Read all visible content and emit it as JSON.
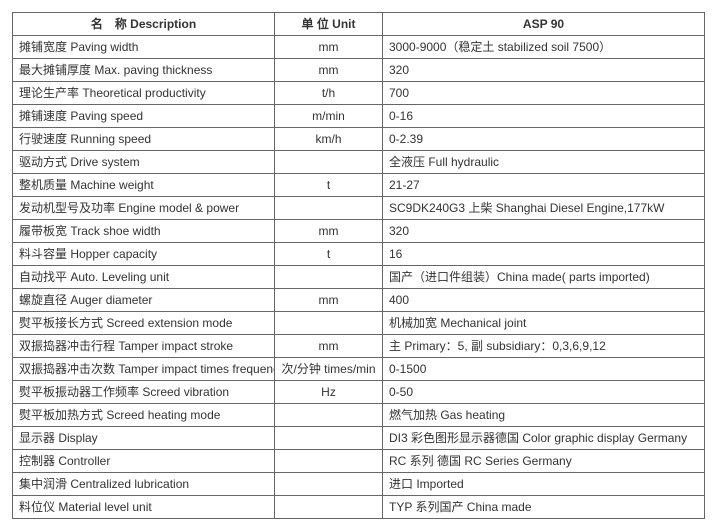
{
  "columns": [
    "名　称 Description",
    "单 位 Unit",
    "ASP 90"
  ],
  "rows": [
    {
      "desc": "摊铺宽度 Paving width",
      "unit": "mm",
      "val": "3000-9000（稳定土 stabilized soil 7500）"
    },
    {
      "desc": "最大摊铺厚度 Max. paving thickness",
      "unit": "mm",
      "val": "320"
    },
    {
      "desc": "理论生产率 Theoretical productivity",
      "unit": "t/h",
      "val": "700"
    },
    {
      "desc": "摊铺速度 Paving speed",
      "unit": "m/min",
      "val": "0-16"
    },
    {
      "desc": "行驶速度 Running speed",
      "unit": "km/h",
      "val": "0-2.39"
    },
    {
      "desc": "驱动方式 Drive system",
      "unit": "",
      "val": "全液压 Full hydraulic"
    },
    {
      "desc": "整机质量 Machine weight",
      "unit": "t",
      "val": "21-27"
    },
    {
      "desc": "发动机型号及功率 Engine model & power",
      "unit": "",
      "val": "SC9DK240G3 上柴 Shanghai Diesel Engine,177kW"
    },
    {
      "desc": "履带板宽 Track shoe width",
      "unit": "mm",
      "val": "320"
    },
    {
      "desc": "料斗容量 Hopper capacity",
      "unit": "t",
      "val": "16"
    },
    {
      "desc": "自动找平 Auto. Leveling unit",
      "unit": "",
      "val": "国产（进口件组装）China made( parts imported)"
    },
    {
      "desc": "螺旋直径 Auger diameter",
      "unit": "mm",
      "val": "400"
    },
    {
      "desc": "熨平板接长方式 Screed extension mode",
      "unit": "",
      "val": "机械加宽  Mechanical joint"
    },
    {
      "desc": "双振捣器冲击行程 Tamper impact stroke",
      "unit": "mm",
      "val": "主 Primary：5,  副 subsidiary：0,3,6,9,12"
    },
    {
      "desc": "双振捣器冲击次数 Tamper impact times frequency",
      "unit": "次/分钟 times/min",
      "val": "0-1500"
    },
    {
      "desc": "熨平板振动器工作频率 Screed vibration",
      "unit": "Hz",
      "val": "0-50"
    },
    {
      "desc": "熨平板加热方式 Screed heating mode",
      "unit": "",
      "val": "燃气加热 Gas heating"
    },
    {
      "desc": "显示器 Display",
      "unit": "",
      "val": "DI3 彩色图形显示器德国  Color graphic display    Germany"
    },
    {
      "desc": "控制器 Controller",
      "unit": "",
      "val": "RC 系列  德国  RC Series Germany"
    },
    {
      "desc": "集中润滑 Centralized lubrication",
      "unit": "",
      "val": "进口 Imported"
    },
    {
      "desc": "料位仪 Material level unit",
      "unit": "",
      "val": "TYP 系列国产 China made"
    }
  ]
}
